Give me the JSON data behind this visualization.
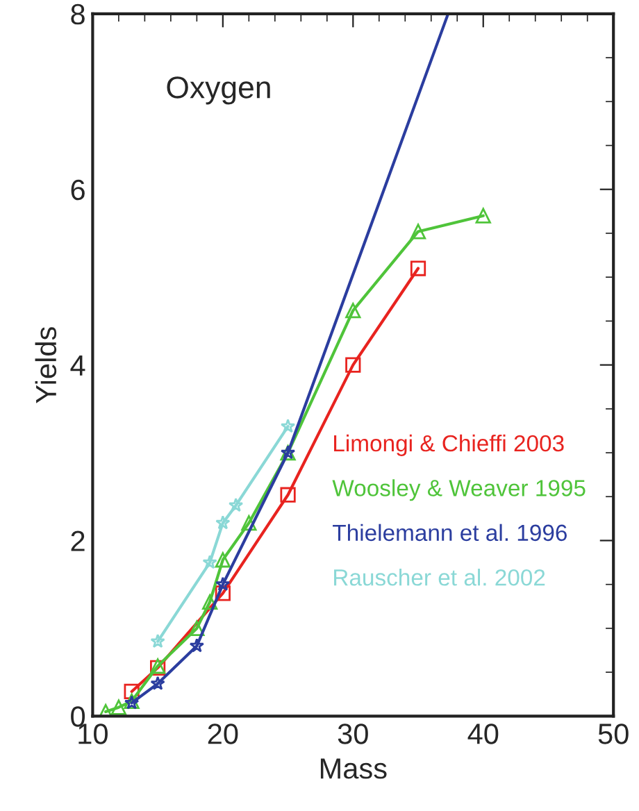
{
  "chart_data": {
    "type": "line",
    "title": "Oxygen",
    "xlabel": "Mass",
    "ylabel": "Yields",
    "xlim": [
      10,
      50
    ],
    "ylim": [
      0,
      8
    ],
    "xticks": [
      10,
      20,
      30,
      40,
      50
    ],
    "yticks": [
      0,
      2,
      4,
      6,
      8
    ],
    "grid": false,
    "legend": "right",
    "series": [
      {
        "name": "Limongi & Chieffi 2003",
        "color": "#e8231f",
        "marker": "square",
        "x": [
          13,
          15,
          20,
          25,
          30,
          35
        ],
        "values": [
          0.28,
          0.55,
          1.4,
          2.52,
          4.0,
          5.1
        ]
      },
      {
        "name": "Woosley & Weaver 1995",
        "color": "#4fc43a",
        "marker": "triangle",
        "x": [
          11,
          12,
          13,
          15,
          18,
          19,
          20,
          22,
          25,
          30,
          35,
          40
        ],
        "values": [
          0.05,
          0.1,
          0.17,
          0.57,
          1.0,
          1.3,
          1.78,
          2.2,
          3.0,
          4.62,
          5.52,
          5.7
        ]
      },
      {
        "name": "Thielemann et al. 1996",
        "color": "#2b3d9f",
        "marker": "star",
        "x": [
          13,
          15,
          18,
          20,
          25
        ],
        "values": [
          0.15,
          0.37,
          0.8,
          1.5,
          3.0
        ]
      },
      {
        "name": "Rauscher et al. 2002",
        "color": "#8ad8d6",
        "marker": "star",
        "x": [
          15,
          19,
          20,
          21,
          25
        ],
        "values": [
          0.85,
          1.75,
          2.2,
          2.4,
          3.3
        ]
      },
      {
        "color": "#2b3d9f",
        "marker": "none",
        "x": [
          25,
          37.3
        ],
        "values": [
          3.0,
          8.0
        ]
      }
    ]
  }
}
